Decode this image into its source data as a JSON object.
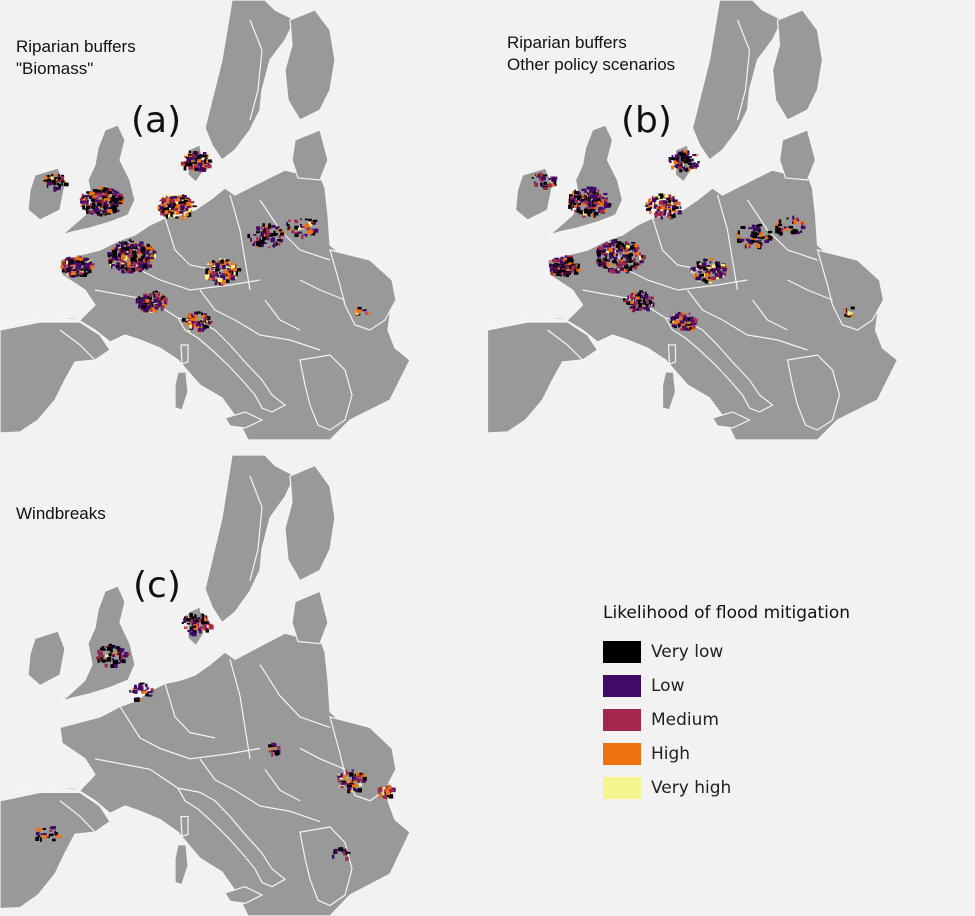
{
  "panels": [
    {
      "id": "a",
      "title_line1": "Riparian buffers",
      "title_line2": "\"Biomass\"",
      "letter": "(a)",
      "measure": "Riparian buffers \"Biomass\""
    },
    {
      "id": "b",
      "title_line1": "Riparian buffers",
      "title_line2": "Other policy scenarios",
      "letter": "(b)",
      "measure": "Riparian buffers Other policy scenarios"
    },
    {
      "id": "c",
      "title_line1": "Windbreaks",
      "title_line2": "",
      "letter": "(c)",
      "measure": "Windbreaks"
    }
  ],
  "legend": {
    "title": "Likelihood of flood mitigation",
    "items": [
      {
        "label": "Very low",
        "color": "#000000"
      },
      {
        "label": "Low",
        "color": "#420a68"
      },
      {
        "label": "Medium",
        "color": "#a3284d"
      },
      {
        "label": "High",
        "color": "#ee7210"
      },
      {
        "label": "Very high",
        "color": "#f4f58c"
      }
    ]
  },
  "colors": {
    "land": "#999999",
    "border": "#f4f4f4",
    "sea": "#f2f2f2"
  }
}
